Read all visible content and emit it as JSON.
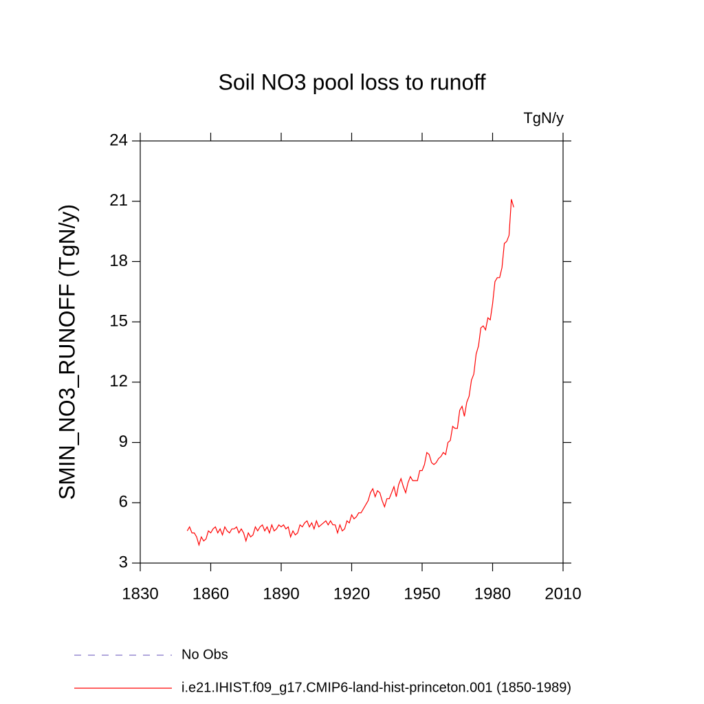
{
  "chart_data": {
    "type": "line",
    "title": "Soil NO3 pool loss to runoff",
    "units": "TgN/y",
    "y_label": "SMIN_NO3_RUNOFF  (TgN/y)",
    "x": [
      1850,
      1851,
      1852,
      1853,
      1854,
      1855,
      1856,
      1857,
      1858,
      1859,
      1860,
      1861,
      1862,
      1863,
      1864,
      1865,
      1866,
      1867,
      1868,
      1869,
      1870,
      1871,
      1872,
      1873,
      1874,
      1875,
      1876,
      1877,
      1878,
      1879,
      1880,
      1881,
      1882,
      1883,
      1884,
      1885,
      1886,
      1887,
      1888,
      1889,
      1890,
      1891,
      1892,
      1893,
      1894,
      1895,
      1896,
      1897,
      1898,
      1899,
      1900,
      1901,
      1902,
      1903,
      1904,
      1905,
      1906,
      1907,
      1908,
      1909,
      1910,
      1911,
      1912,
      1913,
      1914,
      1915,
      1916,
      1917,
      1918,
      1919,
      1920,
      1921,
      1922,
      1923,
      1924,
      1925,
      1926,
      1927,
      1928,
      1929,
      1930,
      1931,
      1932,
      1933,
      1934,
      1935,
      1936,
      1937,
      1938,
      1939,
      1940,
      1941,
      1942,
      1943,
      1944,
      1945,
      1946,
      1947,
      1948,
      1949,
      1950,
      1951,
      1952,
      1953,
      1954,
      1955,
      1956,
      1957,
      1958,
      1959,
      1960,
      1961,
      1962,
      1963,
      1964,
      1965,
      1966,
      1967,
      1968,
      1969,
      1970,
      1971,
      1972,
      1973,
      1974,
      1975,
      1976,
      1977,
      1978,
      1979,
      1980,
      1981,
      1982,
      1983,
      1984,
      1985,
      1986,
      1987,
      1988,
      1989
    ],
    "series": [
      {
        "name": "i.e21.IHIST.f09_g17.CMIP6-land-hist-princeton.001 (1850-1989)",
        "color": "#ff0000",
        "values": [
          4.6,
          4.8,
          4.5,
          4.5,
          4.3,
          3.9,
          4.3,
          4.1,
          4.2,
          4.6,
          4.5,
          4.7,
          4.8,
          4.5,
          4.7,
          4.4,
          4.8,
          4.6,
          4.5,
          4.7,
          4.7,
          4.8,
          4.5,
          4.7,
          4.5,
          4.1,
          4.5,
          4.3,
          4.4,
          4.8,
          4.6,
          4.8,
          4.9,
          4.6,
          4.8,
          4.5,
          4.9,
          4.6,
          4.7,
          4.9,
          4.8,
          4.9,
          4.7,
          4.8,
          4.3,
          4.6,
          4.4,
          4.5,
          4.9,
          4.8,
          5.0,
          5.1,
          4.8,
          5.0,
          4.7,
          5.1,
          4.8,
          4.9,
          5.0,
          5.1,
          4.9,
          5.1,
          4.9,
          4.9,
          4.5,
          4.9,
          4.6,
          4.7,
          5.1,
          5.0,
          5.4,
          5.2,
          5.3,
          5.5,
          5.5,
          5.7,
          5.9,
          6.1,
          6.5,
          6.7,
          6.3,
          6.6,
          6.5,
          6.1,
          5.8,
          6.2,
          6.2,
          6.5,
          6.8,
          6.3,
          6.9,
          7.2,
          6.8,
          6.5,
          7.0,
          7.3,
          7.1,
          7.1,
          7.1,
          7.6,
          7.6,
          7.9,
          8.5,
          8.4,
          8.0,
          7.9,
          8.0,
          8.2,
          8.3,
          8.5,
          8.4,
          9.0,
          9.1,
          9.8,
          9.7,
          9.7,
          10.6,
          10.8,
          10.3,
          11.0,
          11.3,
          12.1,
          12.4,
          13.4,
          13.8,
          14.7,
          14.8,
          14.6,
          15.2,
          15.1,
          15.9,
          17.0,
          17.2,
          17.2,
          17.7,
          18.9,
          19.0,
          19.3,
          21.1,
          20.7
        ]
      }
    ],
    "reference": {
      "name": "No Obs",
      "color": "#8070c8",
      "dash": "10 10"
    },
    "xlim": [
      1830,
      2010
    ],
    "xticks": [
      1830,
      1860,
      1890,
      1920,
      1950,
      1980,
      2010
    ],
    "ylim": [
      3,
      24
    ],
    "yticks": [
      3,
      6,
      9,
      12,
      15,
      18,
      21,
      24
    ]
  }
}
